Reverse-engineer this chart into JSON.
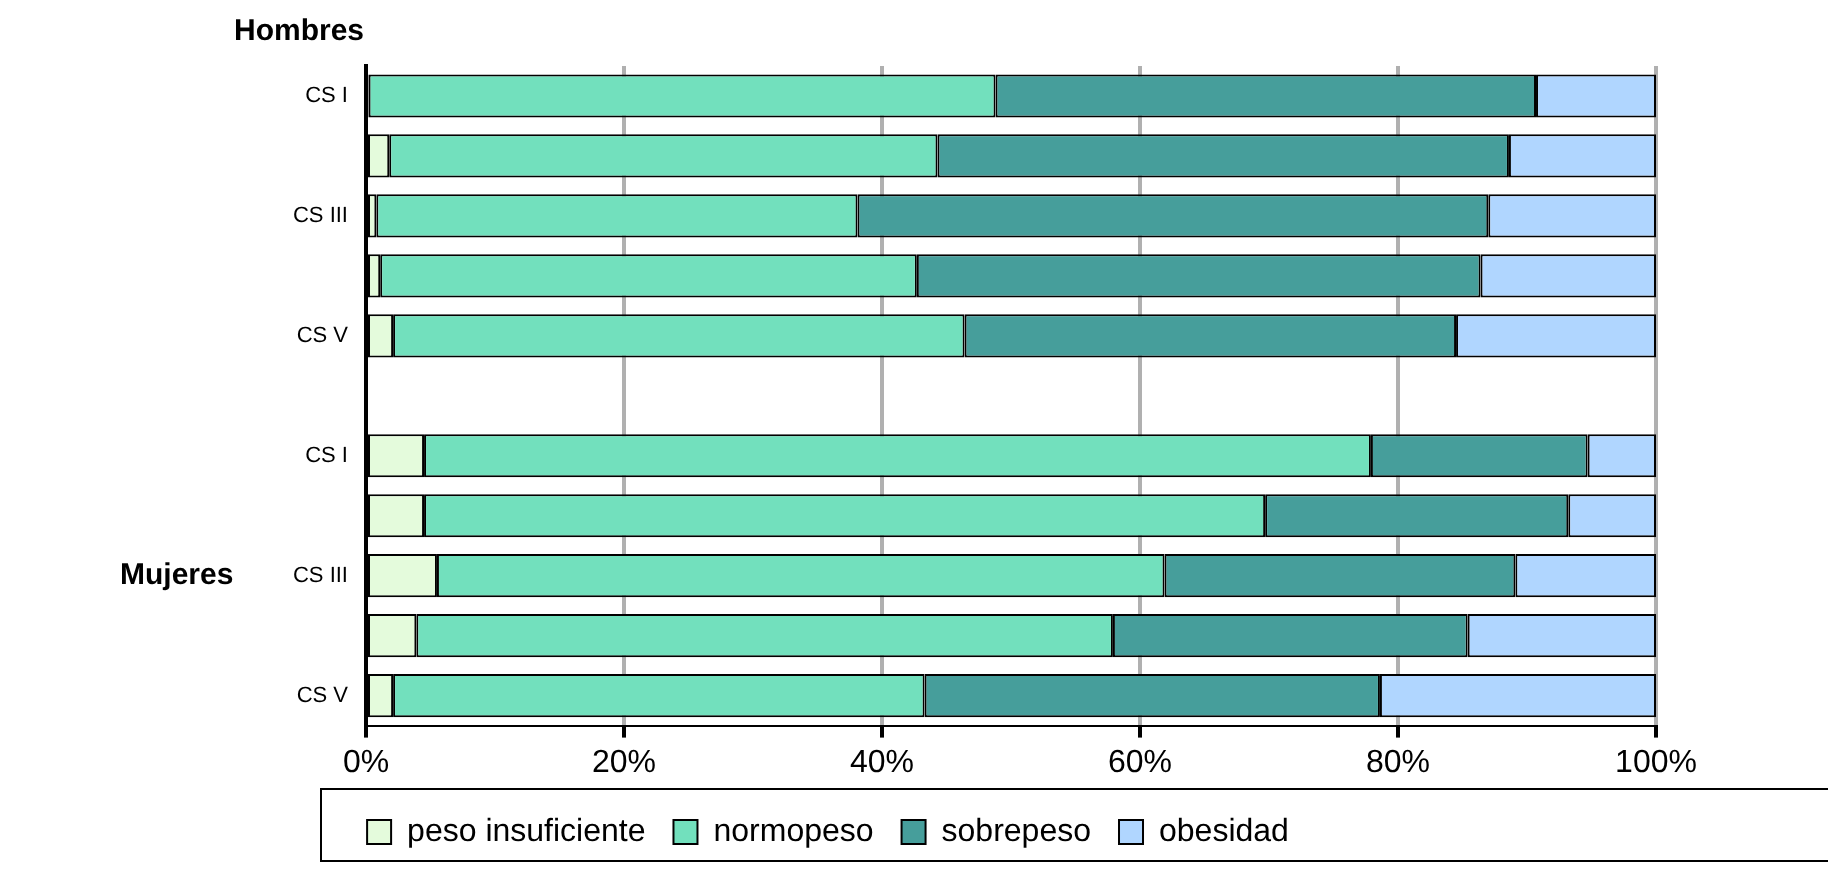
{
  "chart_data": {
    "type": "bar",
    "orientation": "horizontal",
    "stacked": true,
    "categories": [
      "CS I",
      null,
      "CS III",
      null,
      "CS V",
      null,
      "CS I",
      null,
      "CS III",
      null,
      "CS V"
    ],
    "series": [
      {
        "name": "peso insuficiente",
        "color": "#e4fbdc",
        "values": [
          0.2,
          1.8,
          0.8,
          1.1,
          2.1,
          null,
          4.5,
          4.5,
          5.5,
          3.9,
          2.1
        ]
      },
      {
        "name": "normopeso",
        "color": "#72e0bd",
        "values": [
          48.6,
          42.5,
          37.3,
          41.6,
          44.3,
          null,
          73.4,
          65.2,
          56.4,
          54.0,
          41.2
        ]
      },
      {
        "name": "sobrepeso",
        "color": "#469e9b",
        "values": [
          41.9,
          44.3,
          48.9,
          43.7,
          38.1,
          null,
          16.8,
          23.5,
          27.2,
          27.5,
          35.3
        ]
      },
      {
        "name": "obesidad",
        "color": "#b0d6ff",
        "values": [
          9.3,
          11.4,
          13.0,
          13.6,
          15.5,
          null,
          5.3,
          6.8,
          10.9,
          14.6,
          21.4
        ]
      }
    ],
    "xlim": [
      0,
      100
    ],
    "xticks": [
      {
        "value": 0,
        "label": "0%"
      },
      {
        "value": 20,
        "label": "20%"
      },
      {
        "value": 40,
        "label": "40%"
      },
      {
        "value": 60,
        "label": "60%"
      },
      {
        "value": 80,
        "label": "80%"
      },
      {
        "value": 100,
        "label": "100%"
      }
    ],
    "grid": "x",
    "legend": "bottom",
    "annotations": [
      "Hombres",
      "Mujeres"
    ]
  }
}
